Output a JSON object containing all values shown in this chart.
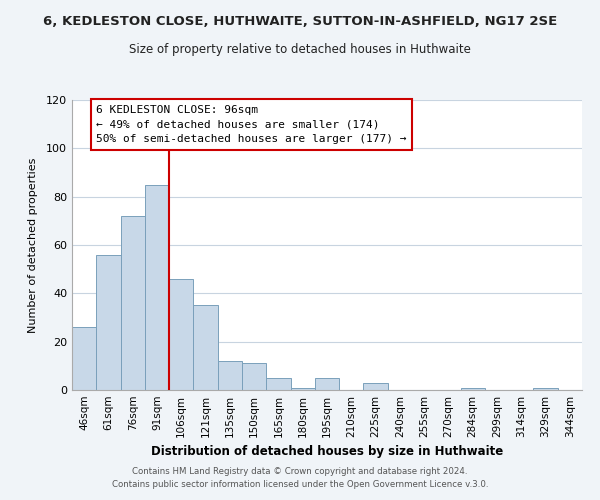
{
  "title": "6, KEDLESTON CLOSE, HUTHWAITE, SUTTON-IN-ASHFIELD, NG17 2SE",
  "subtitle": "Size of property relative to detached houses in Huthwaite",
  "xlabel": "Distribution of detached houses by size in Huthwaite",
  "ylabel": "Number of detached properties",
  "bar_labels": [
    "46sqm",
    "61sqm",
    "76sqm",
    "91sqm",
    "106sqm",
    "121sqm",
    "135sqm",
    "150sqm",
    "165sqm",
    "180sqm",
    "195sqm",
    "210sqm",
    "225sqm",
    "240sqm",
    "255sqm",
    "270sqm",
    "284sqm",
    "299sqm",
    "314sqm",
    "329sqm",
    "344sqm"
  ],
  "bar_values": [
    26,
    56,
    72,
    85,
    46,
    35,
    12,
    11,
    5,
    1,
    5,
    0,
    3,
    0,
    0,
    0,
    1,
    0,
    0,
    1,
    0
  ],
  "bar_color": "#c8d8e8",
  "bar_edge_color": "#7aa0bb",
  "ylim": [
    0,
    120
  ],
  "yticks": [
    0,
    20,
    40,
    60,
    80,
    100,
    120
  ],
  "vline_x": 3.5,
  "vline_color": "#cc0000",
  "annotation_title": "6 KEDLESTON CLOSE: 96sqm",
  "annotation_line1": "← 49% of detached houses are smaller (174)",
  "annotation_line2": "50% of semi-detached houses are larger (177) →",
  "footer1": "Contains HM Land Registry data © Crown copyright and database right 2024.",
  "footer2": "Contains public sector information licensed under the Open Government Licence v.3.0.",
  "bg_color": "#f0f4f8",
  "plot_bg_color": "#ffffff",
  "grid_color": "#c8d4e0"
}
